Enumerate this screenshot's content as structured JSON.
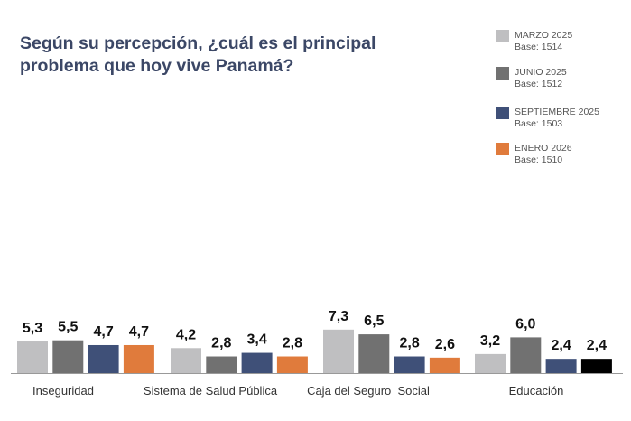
{
  "chart_data": {
    "type": "bar",
    "title": "Según su percepción, ¿cuál es el principal problema que hoy vive Panamá?",
    "xlabel": "",
    "ylabel": "",
    "categories": [
      "Inseguridad",
      "Sistema de Salud Pública",
      "Caja del Seguro  Social",
      "Educación"
    ],
    "series": [
      {
        "name": "MARZO 2025",
        "base": "Base: 1514",
        "color": "#bfbfc1",
        "values": [
          5.3,
          4.2,
          7.3,
          3.2
        ],
        "labels": [
          "5,3",
          "4,2",
          "7,3",
          "3,2"
        ]
      },
      {
        "name": "JUNIO 2025",
        "base": "Base: 1512",
        "color": "#717171",
        "values": [
          5.5,
          2.8,
          6.5,
          6.0
        ],
        "labels": [
          "5,5",
          "2,8",
          "6,5",
          "6,0"
        ]
      },
      {
        "name": "SEPTIEMBRE 2025",
        "base": "Base: 1503",
        "color": "#3f5078",
        "values": [
          4.7,
          3.4,
          2.8,
          2.4
        ],
        "labels": [
          "4,7",
          "3,4",
          "2,8",
          "2,4"
        ]
      },
      {
        "name": "ENERO 2026",
        "base": "Base: 1510",
        "color": "#e07b3c",
        "values": [
          4.7,
          2.8,
          2.6,
          2.4
        ],
        "labels": [
          "4,7",
          "2,8",
          "2,6",
          "2,4"
        ],
        "point_colors": [
          null,
          null,
          null,
          "#000000"
        ]
      }
    ],
    "ylim": [
      0,
      8
    ],
    "grid": false,
    "legend": "top-right"
  }
}
